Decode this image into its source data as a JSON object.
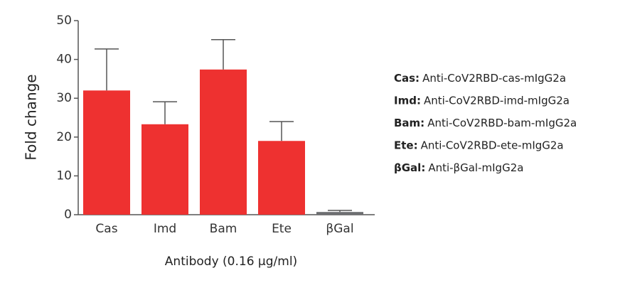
{
  "chart_data": {
    "type": "bar",
    "y_label": "Fold change",
    "x_label": "Antibody (0.16 µg/ml)",
    "categories": [
      "Cas",
      "Imd",
      "Bam",
      "Ete",
      "βGal"
    ],
    "values": [
      32,
      23.3,
      37.4,
      19,
      0.7
    ],
    "errors": [
      10.7,
      5.8,
      7.7,
      5,
      0.4
    ],
    "colors": [
      "#ee3130",
      "#ee3130",
      "#ee3130",
      "#ee3130",
      "#6d6e71"
    ],
    "ylim": [
      0,
      50
    ],
    "yticks": [
      0,
      10,
      20,
      30,
      40,
      50
    ],
    "grid": false,
    "legend_notes": [
      {
        "abbr": "Cas:",
        "text": "Anti-CoV2RBD-cas-mIgG2a"
      },
      {
        "abbr": "Imd:",
        "text": "Anti-CoV2RBD-imd-mIgG2a"
      },
      {
        "abbr": "Bam:",
        "text": "Anti-CoV2RBD-bam-mIgG2a"
      },
      {
        "abbr": "Ete:",
        "text": "Anti-CoV2RBD-ete-mIgG2a"
      },
      {
        "abbr": "βGal:",
        "text": "Anti-βGal-mIgG2a"
      }
    ]
  }
}
